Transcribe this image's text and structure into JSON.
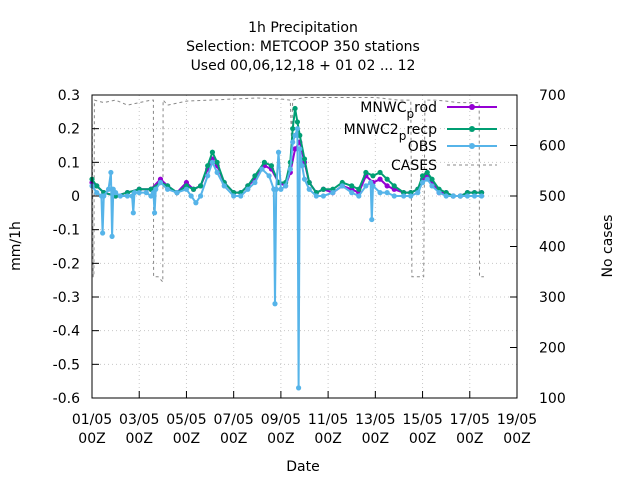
{
  "chart_data": {
    "type": "line",
    "title_lines": [
      "1h Precipitation",
      "Selection: METCOOP     350 stations",
      "Used  00,06,12,18  + 01 02 ... 12"
    ],
    "xlabel": "Date",
    "ylabel": "mm/1h",
    "y2label": "No cases",
    "x_ticks": [
      {
        "day": 1,
        "line1": "01/05",
        "line2": "00Z"
      },
      {
        "day": 3,
        "line1": "03/05",
        "line2": "00Z"
      },
      {
        "day": 5,
        "line1": "05/05",
        "line2": "00Z"
      },
      {
        "day": 7,
        "line1": "07/05",
        "line2": "00Z"
      },
      {
        "day": 9,
        "line1": "09/05",
        "line2": "00Z"
      },
      {
        "day": 11,
        "line1": "11/05",
        "line2": "00Z"
      },
      {
        "day": 13,
        "line1": "13/05",
        "line2": "00Z"
      },
      {
        "day": 15,
        "line1": "15/05",
        "line2": "00Z"
      },
      {
        "day": 17,
        "line1": "17/05",
        "line2": "00Z"
      },
      {
        "day": 19,
        "line1": "19/05",
        "line2": "00Z"
      }
    ],
    "xlim": [
      1,
      19
    ],
    "ylim": [
      -0.6,
      0.3
    ],
    "y_ticks": [
      "0.3",
      "0.2",
      "0.1",
      "0",
      "-0.1",
      "-0.2",
      "-0.3",
      "-0.4",
      "-0.5",
      "-0.6"
    ],
    "y2lim": [
      100,
      700
    ],
    "y2_ticks": [
      "700",
      "600",
      "500",
      "400",
      "300",
      "200",
      "100"
    ],
    "grid": true,
    "legend_position": "top-right",
    "series": [
      {
        "name": "MNWC_prod",
        "legend_main": "MNWC",
        "legend_sub": "p",
        "legend_tail": "rod",
        "color": "#9400d3",
        "axis": "left",
        "x": [
          1.0,
          1.2,
          1.5,
          2.0,
          2.5,
          3.0,
          3.5,
          3.9,
          4.2,
          4.6,
          5.0,
          5.3,
          5.6,
          5.9,
          6.1,
          6.3,
          6.6,
          7.0,
          7.3,
          7.6,
          7.9,
          8.3,
          8.6,
          8.9,
          9.2,
          9.4,
          9.6,
          9.8,
          10.0,
          10.2,
          10.5,
          10.8,
          11.2,
          11.6,
          12.0,
          12.3,
          12.6,
          12.9,
          13.2,
          13.5,
          13.8,
          14.2,
          14.5,
          14.8,
          15.0,
          15.2,
          15.4,
          15.7,
          16.0,
          16.3,
          16.6,
          16.9,
          17.2,
          17.5
        ],
        "y": [
          0.04,
          0.03,
          0.01,
          0.0,
          0.01,
          0.02,
          0.02,
          0.05,
          0.03,
          0.01,
          0.04,
          0.02,
          0.03,
          0.08,
          0.11,
          0.09,
          0.04,
          0.01,
          0.01,
          0.03,
          0.05,
          0.09,
          0.08,
          0.04,
          0.03,
          0.07,
          0.14,
          0.16,
          0.1,
          0.04,
          0.01,
          0.02,
          0.01,
          0.03,
          0.02,
          0.01,
          0.06,
          0.04,
          0.05,
          0.03,
          0.02,
          0.01,
          0.01,
          0.02,
          0.05,
          0.06,
          0.04,
          0.01,
          0.01,
          0.0,
          0.0,
          0.01,
          0.01,
          0.01
        ]
      },
      {
        "name": "MNWC2_prep",
        "legend_main": "MNWC2",
        "legend_sub": "p",
        "legend_tail": "recp",
        "color": "#009e73",
        "axis": "left",
        "x": [
          1.0,
          1.2,
          1.5,
          2.0,
          2.5,
          3.0,
          3.5,
          3.9,
          4.2,
          4.6,
          5.0,
          5.3,
          5.6,
          5.9,
          6.1,
          6.3,
          6.6,
          7.0,
          7.3,
          7.6,
          7.9,
          8.3,
          8.6,
          8.9,
          9.2,
          9.4,
          9.5,
          9.6,
          9.7,
          9.8,
          10.0,
          10.2,
          10.5,
          10.8,
          11.2,
          11.6,
          12.0,
          12.3,
          12.6,
          12.9,
          13.2,
          13.5,
          13.8,
          14.2,
          14.5,
          14.8,
          15.0,
          15.2,
          15.4,
          15.7,
          16.0,
          16.3,
          16.6,
          16.9,
          17.2,
          17.5
        ],
        "y": [
          0.05,
          0.03,
          0.01,
          0.0,
          0.01,
          0.02,
          0.02,
          0.04,
          0.03,
          0.01,
          0.03,
          0.02,
          0.03,
          0.09,
          0.13,
          0.1,
          0.04,
          0.01,
          0.01,
          0.03,
          0.06,
          0.1,
          0.09,
          0.04,
          0.04,
          0.1,
          0.2,
          0.26,
          0.22,
          0.18,
          0.11,
          0.04,
          0.01,
          0.02,
          0.02,
          0.04,
          0.03,
          0.02,
          0.07,
          0.06,
          0.07,
          0.05,
          0.03,
          0.01,
          0.01,
          0.02,
          0.06,
          0.07,
          0.05,
          0.02,
          0.01,
          0.0,
          0.0,
          0.01,
          0.01,
          0.01
        ]
      },
      {
        "name": "OBS",
        "color": "#56b4e9",
        "axis": "left",
        "x": [
          1.0,
          1.2,
          1.4,
          1.45,
          1.5,
          1.7,
          1.8,
          1.85,
          1.9,
          2.0,
          2.2,
          2.5,
          2.7,
          2.75,
          2.8,
          3.0,
          3.3,
          3.5,
          3.6,
          3.65,
          3.7,
          3.9,
          4.2,
          4.6,
          5.0,
          5.2,
          5.4,
          5.6,
          5.9,
          6.1,
          6.3,
          6.6,
          7.0,
          7.3,
          7.6,
          7.9,
          8.2,
          8.5,
          8.7,
          8.75,
          8.8,
          8.9,
          9.0,
          9.2,
          9.4,
          9.5,
          9.6,
          9.7,
          9.75,
          9.8,
          9.9,
          10.0,
          10.2,
          10.5,
          10.8,
          11.2,
          11.6,
          12.0,
          12.3,
          12.6,
          12.8,
          12.85,
          12.9,
          13.2,
          13.5,
          13.8,
          14.2,
          14.5,
          14.8,
          15.0,
          15.2,
          15.4,
          15.7,
          16.0,
          16.3,
          16.6,
          16.9,
          17.2,
          17.5
        ],
        "y": [
          0.03,
          0.01,
          0.0,
          -0.11,
          0.0,
          0.02,
          0.07,
          -0.12,
          0.02,
          0.01,
          0.0,
          0.0,
          0.0,
          -0.05,
          0.01,
          0.01,
          0.01,
          0.0,
          0.01,
          -0.05,
          0.02,
          0.04,
          0.02,
          0.01,
          0.02,
          0.0,
          -0.02,
          0.0,
          0.06,
          0.1,
          0.07,
          0.03,
          0.0,
          0.0,
          0.02,
          0.04,
          0.08,
          0.06,
          0.02,
          -0.32,
          0.02,
          0.13,
          0.02,
          0.03,
          0.08,
          0.16,
          0.18,
          0.2,
          -0.57,
          0.14,
          0.09,
          0.05,
          0.02,
          0.0,
          0.0,
          0.01,
          0.03,
          0.01,
          0.0,
          0.03,
          0.04,
          -0.07,
          0.03,
          0.01,
          0.01,
          0.0,
          0.0,
          0.0,
          0.01,
          0.04,
          0.05,
          0.03,
          0.01,
          0.0,
          0.0,
          0.0,
          0.0,
          0.0,
          0.0
        ]
      },
      {
        "name": "CASES",
        "color": "#888888",
        "axis": "right",
        "dashed": true,
        "x": [
          1.0,
          1.05,
          1.08,
          1.1,
          1.5,
          2.0,
          2.5,
          3.0,
          3.5,
          3.6,
          3.61,
          3.8,
          4.0,
          4.01,
          4.2,
          5.0,
          6.0,
          7.0,
          8.0,
          9.0,
          9.4,
          9.45,
          9.5,
          10.0,
          11.0,
          12.0,
          13.0,
          14.0,
          14.5,
          14.55,
          15.0,
          15.05,
          15.1,
          15.5,
          16.0,
          16.5,
          17.0,
          17.4,
          17.41,
          17.6
        ],
        "y": [
          690,
          340,
          340,
          690,
          685,
          690,
          680,
          685,
          690,
          690,
          340,
          340,
          330,
          690,
          680,
          688,
          690,
          692,
          694,
          692,
          690,
          610,
          690,
          695,
          695,
          695,
          695,
          690,
          690,
          340,
          340,
          340,
          690,
          690,
          688,
          685,
          685,
          685,
          340,
          340
        ]
      }
    ]
  }
}
